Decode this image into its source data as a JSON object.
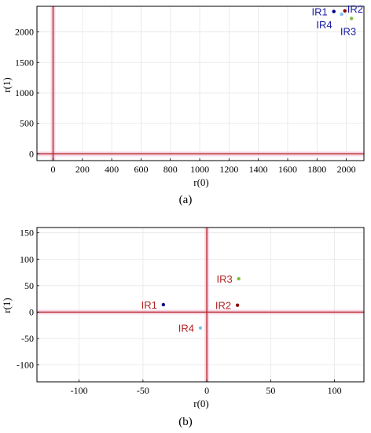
{
  "colors": {
    "axis_line": "#b22222",
    "axis_band": "#f3c0d8",
    "grid": "#e6e6e6",
    "frame": "#000000"
  },
  "chart_data": [
    {
      "type": "scatter",
      "caption": "(a)",
      "xlabel": "r(0)",
      "ylabel": "r(1)",
      "xlim": [
        -110,
        2120
      ],
      "ylim": [
        -110,
        2420
      ],
      "xticks": [
        0,
        200,
        400,
        600,
        800,
        1000,
        1200,
        1400,
        1600,
        1800,
        2000
      ],
      "yticks": [
        0,
        500,
        1000,
        1500,
        2000
      ],
      "grid": true,
      "series": [
        {
          "name": "IR1",
          "color": "#00008b",
          "label_color": "#1a1aa6",
          "label_pos": "left",
          "points": [
            [
              1915,
              2335
            ]
          ]
        },
        {
          "name": "IR2",
          "color": "#8b0000",
          "label_color": "#1a1aa6",
          "label_pos": "right",
          "points": [
            [
              1990,
              2345
            ]
          ]
        },
        {
          "name": "IR3",
          "color": "#7fbf3f",
          "label_color": "#1a1aa6",
          "label_pos": "below-right",
          "points": [
            [
              2035,
              2220
            ]
          ]
        },
        {
          "name": "IR4",
          "color": "#7fbfef",
          "label_color": "#1a1aa6",
          "label_pos": "below-left",
          "points": [
            [
              1968,
              2290
            ]
          ]
        }
      ]
    },
    {
      "type": "scatter",
      "caption": "(b)",
      "xlabel": "r(0)",
      "ylabel": "r(1)",
      "xlim": [
        -133,
        123
      ],
      "ylim": [
        -132,
        160
      ],
      "xticks": [
        -100,
        -50,
        0,
        50,
        100
      ],
      "yticks": [
        -100,
        -50,
        0,
        50,
        100,
        150
      ],
      "grid": true,
      "series": [
        {
          "name": "IR1",
          "color": "#00008b",
          "label_color": "#b22222",
          "label_pos": "left",
          "points": [
            [
              -34,
              14
            ]
          ]
        },
        {
          "name": "IR2",
          "color": "#8b0000",
          "label_color": "#b22222",
          "label_pos": "left",
          "points": [
            [
              24,
              13
            ]
          ]
        },
        {
          "name": "IR3",
          "color": "#7fbf3f",
          "label_color": "#b22222",
          "label_pos": "left",
          "points": [
            [
              25,
              63
            ]
          ]
        },
        {
          "name": "IR4",
          "color": "#7fbfef",
          "label_color": "#b22222",
          "label_pos": "left",
          "points": [
            [
              -5,
              -30
            ]
          ]
        }
      ]
    }
  ]
}
